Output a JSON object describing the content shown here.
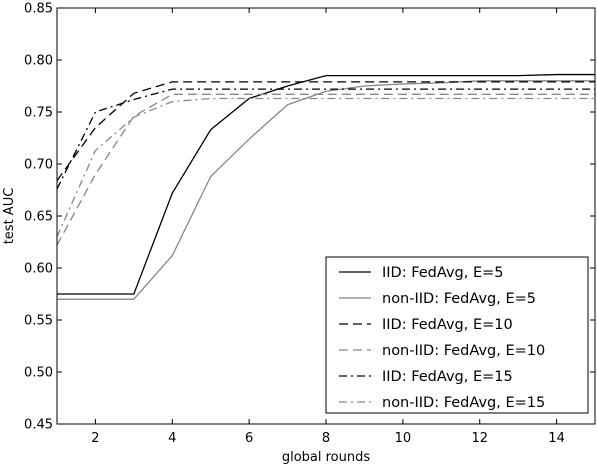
{
  "chart_data": {
    "type": "line",
    "title": "",
    "xlabel": "global rounds",
    "ylabel": "test AUC",
    "xlim": [
      1,
      15
    ],
    "ylim": [
      0.45,
      0.85
    ],
    "xticks": [
      2,
      4,
      6,
      8,
      10,
      12,
      14
    ],
    "yticks": [
      0.45,
      0.5,
      0.55,
      0.6,
      0.65,
      0.7,
      0.75,
      0.8,
      0.85
    ],
    "xtick_labels": [
      "2",
      "4",
      "6",
      "8",
      "10",
      "12",
      "14"
    ],
    "ytick_labels": [
      "0.45",
      "0.50",
      "0.55",
      "0.60",
      "0.65",
      "0.70",
      "0.75",
      "0.80",
      "0.85"
    ],
    "grid": false,
    "legend_position": "lower-right",
    "x": [
      1,
      2,
      3,
      4,
      5,
      6,
      7,
      8,
      9,
      10,
      11,
      12,
      13,
      14,
      15
    ],
    "series": [
      {
        "name": "IID: FedAvg, E=5",
        "color": "#000000",
        "dash": "solid",
        "values": [
          0.575,
          0.575,
          0.575,
          0.672,
          0.733,
          0.763,
          0.775,
          0.785,
          0.785,
          0.785,
          0.785,
          0.785,
          0.785,
          0.786,
          0.786
        ]
      },
      {
        "name": "non-IID: FedAvg, E=5",
        "color": "#888888",
        "dash": "solid",
        "values": [
          0.57,
          0.57,
          0.57,
          0.612,
          0.688,
          0.724,
          0.757,
          0.77,
          0.775,
          0.777,
          0.778,
          0.78,
          0.78,
          0.78,
          0.78
        ]
      },
      {
        "name": "IID: FedAvg, E=10",
        "color": "#000000",
        "dash": "dashed",
        "values": [
          0.684,
          0.735,
          0.768,
          0.779,
          0.779,
          0.779,
          0.779,
          0.779,
          0.779,
          0.779,
          0.779,
          0.779,
          0.779,
          0.779,
          0.779
        ]
      },
      {
        "name": "non-IID: FedAvg, E=10",
        "color": "#888888",
        "dash": "dashed",
        "values": [
          0.622,
          0.69,
          0.746,
          0.767,
          0.767,
          0.767,
          0.767,
          0.767,
          0.767,
          0.767,
          0.767,
          0.767,
          0.767,
          0.767,
          0.767
        ]
      },
      {
        "name": "IID: FedAvg, E=15",
        "color": "#000000",
        "dash": "dashdot",
        "values": [
          0.676,
          0.75,
          0.762,
          0.772,
          0.772,
          0.772,
          0.772,
          0.772,
          0.772,
          0.772,
          0.772,
          0.772,
          0.772,
          0.772,
          0.772
        ]
      },
      {
        "name": "non-IID: FedAvg, E=15",
        "color": "#888888",
        "dash": "dashdot",
        "values": [
          0.63,
          0.713,
          0.745,
          0.76,
          0.763,
          0.763,
          0.763,
          0.763,
          0.763,
          0.763,
          0.763,
          0.763,
          0.763,
          0.763,
          0.763
        ]
      }
    ]
  }
}
